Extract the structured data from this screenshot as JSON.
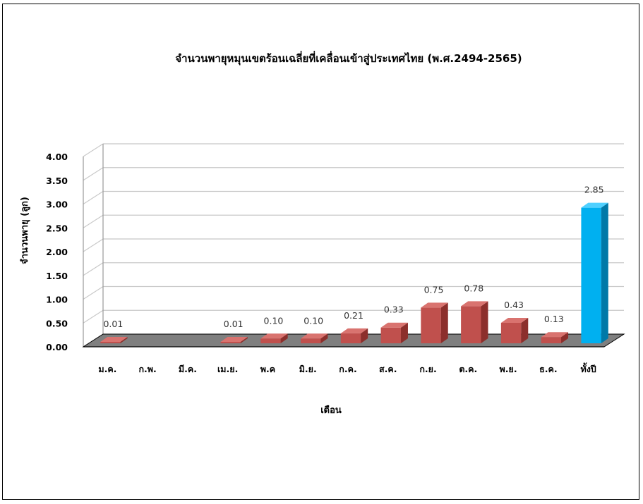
{
  "chart_data": {
    "type": "bar",
    "title": "จำนวนพายุหมุนเขตร้อนเฉลี่ยที่เคลื่อนเข้าสู่ประเทศไทย (พ.ศ.2494-2565)",
    "xlabel": "เดือน",
    "ylabel": "จำนวนพายุ (ลูก)",
    "ylim": [
      0,
      4
    ],
    "yticks": [
      "0.00",
      "0.50",
      "1.00",
      "1.50",
      "2.00",
      "2.50",
      "3.00",
      "3.50",
      "4.00"
    ],
    "categories": [
      "ม.ค.",
      "ก.พ.",
      "มี.ค.",
      "เม.ย.",
      "พ.ค",
      "มิ.ย.",
      "ก.ค.",
      "ส.ค.",
      "ก.ย.",
      "ต.ค.",
      "พ.ย.",
      "ธ.ค.",
      "ทั้งปี"
    ],
    "values": [
      0.01,
      null,
      null,
      0.01,
      0.1,
      0.1,
      0.21,
      0.33,
      0.75,
      0.78,
      0.43,
      0.13,
      2.85
    ],
    "data_labels": [
      "0.01",
      "",
      "",
      "0.01",
      "0.10",
      "0.10",
      "0.21",
      "0.33",
      "0.75",
      "0.78",
      "0.43",
      "0.13",
      "2.85"
    ],
    "grid": true,
    "style": "3d-column",
    "colors": {
      "bar_front": "#c0504d",
      "bar_top": "#d9736f",
      "bar_side": "#8c2f2c",
      "total_front": "#00b0f0",
      "total_top": "#4fd0ff",
      "total_side": "#0079a8",
      "floor": "#7f7f7f",
      "grid": "#c8c8c8"
    }
  }
}
